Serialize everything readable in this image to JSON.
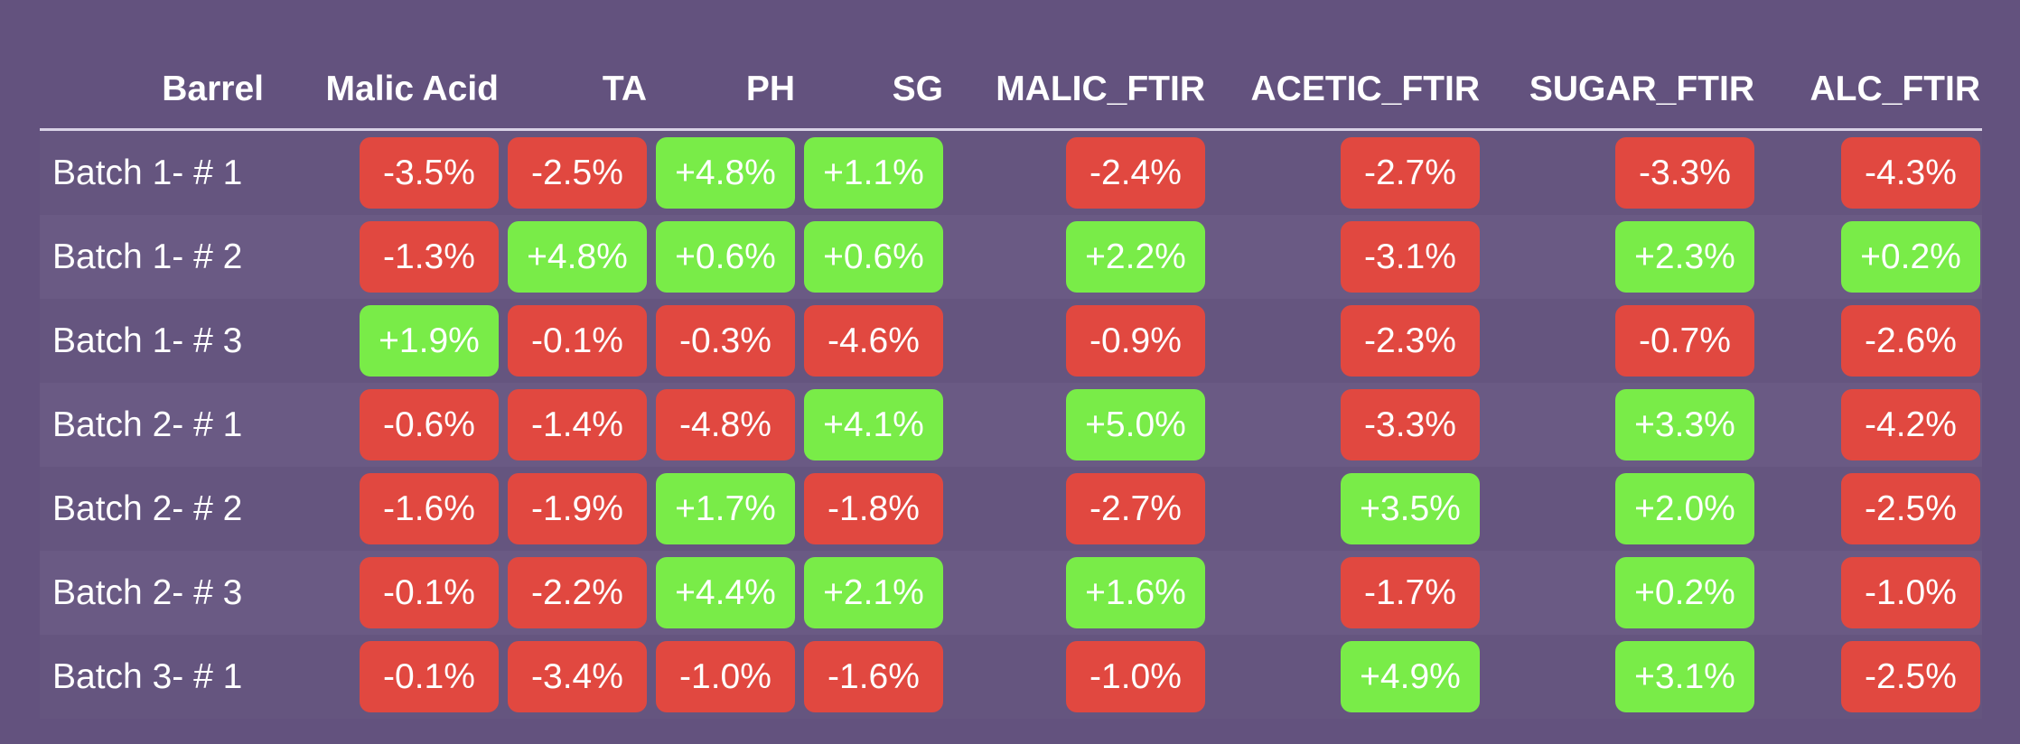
{
  "colors": {
    "background": "#63527e",
    "negative": "#e14840",
    "positive": "#79ec48"
  },
  "table": {
    "columns": [
      "Barrel",
      "Malic Acid",
      "TA",
      "PH",
      "SG",
      "MALIC_FTIR",
      "ACETIC_FTIR",
      "SUGAR_FTIR",
      "ALC_FTIR"
    ],
    "rows": [
      {
        "barrel": "Batch 1- # 1",
        "cells": [
          {
            "text": "-3.5%",
            "status": "negative"
          },
          {
            "text": "-2.5%",
            "status": "negative"
          },
          {
            "text": "+4.8%",
            "status": "positive"
          },
          {
            "text": "+1.1%",
            "status": "positive"
          },
          {
            "text": "-2.4%",
            "status": "negative"
          },
          {
            "text": "-2.7%",
            "status": "negative"
          },
          {
            "text": "-3.3%",
            "status": "negative"
          },
          {
            "text": "-4.3%",
            "status": "negative"
          }
        ]
      },
      {
        "barrel": "Batch 1- # 2",
        "cells": [
          {
            "text": "-1.3%",
            "status": "negative"
          },
          {
            "text": "+4.8%",
            "status": "positive"
          },
          {
            "text": "+0.6%",
            "status": "positive"
          },
          {
            "text": "+0.6%",
            "status": "positive"
          },
          {
            "text": "+2.2%",
            "status": "positive"
          },
          {
            "text": "-3.1%",
            "status": "negative"
          },
          {
            "text": "+2.3%",
            "status": "positive"
          },
          {
            "text": "+0.2%",
            "status": "positive"
          }
        ]
      },
      {
        "barrel": "Batch 1- # 3",
        "cells": [
          {
            "text": "+1.9%",
            "status": "positive"
          },
          {
            "text": "-0.1%",
            "status": "negative"
          },
          {
            "text": "-0.3%",
            "status": "negative"
          },
          {
            "text": "-4.6%",
            "status": "negative"
          },
          {
            "text": "-0.9%",
            "status": "negative"
          },
          {
            "text": "-2.3%",
            "status": "negative"
          },
          {
            "text": "-0.7%",
            "status": "negative"
          },
          {
            "text": "-2.6%",
            "status": "negative"
          }
        ]
      },
      {
        "barrel": "Batch 2- # 1",
        "cells": [
          {
            "text": "-0.6%",
            "status": "negative"
          },
          {
            "text": "-1.4%",
            "status": "negative"
          },
          {
            "text": "-4.8%",
            "status": "negative"
          },
          {
            "text": "+4.1%",
            "status": "positive"
          },
          {
            "text": "+5.0%",
            "status": "positive"
          },
          {
            "text": "-3.3%",
            "status": "negative"
          },
          {
            "text": "+3.3%",
            "status": "positive"
          },
          {
            "text": "-4.2%",
            "status": "negative"
          }
        ]
      },
      {
        "barrel": "Batch 2- # 2",
        "cells": [
          {
            "text": "-1.6%",
            "status": "negative"
          },
          {
            "text": "-1.9%",
            "status": "negative"
          },
          {
            "text": "+1.7%",
            "status": "positive"
          },
          {
            "text": "-1.8%",
            "status": "negative"
          },
          {
            "text": "-2.7%",
            "status": "negative"
          },
          {
            "text": "+3.5%",
            "status": "positive"
          },
          {
            "text": "+2.0%",
            "status": "positive"
          },
          {
            "text": "-2.5%",
            "status": "negative"
          }
        ]
      },
      {
        "barrel": "Batch 2- # 3",
        "cells": [
          {
            "text": "-0.1%",
            "status": "negative"
          },
          {
            "text": "-2.2%",
            "status": "negative"
          },
          {
            "text": "+4.4%",
            "status": "positive"
          },
          {
            "text": "+2.1%",
            "status": "positive"
          },
          {
            "text": "+1.6%",
            "status": "positive"
          },
          {
            "text": "-1.7%",
            "status": "negative"
          },
          {
            "text": "+0.2%",
            "status": "positive"
          },
          {
            "text": "-1.0%",
            "status": "negative"
          }
        ]
      },
      {
        "barrel": "Batch 3- # 1",
        "cells": [
          {
            "text": "-0.1%",
            "status": "negative"
          },
          {
            "text": "-3.4%",
            "status": "negative"
          },
          {
            "text": "-1.0%",
            "status": "negative"
          },
          {
            "text": "-1.6%",
            "status": "negative"
          },
          {
            "text": "-1.0%",
            "status": "negative"
          },
          {
            "text": "+4.9%",
            "status": "positive"
          },
          {
            "text": "+3.1%",
            "status": "positive"
          },
          {
            "text": "-2.5%",
            "status": "negative"
          }
        ]
      }
    ]
  }
}
